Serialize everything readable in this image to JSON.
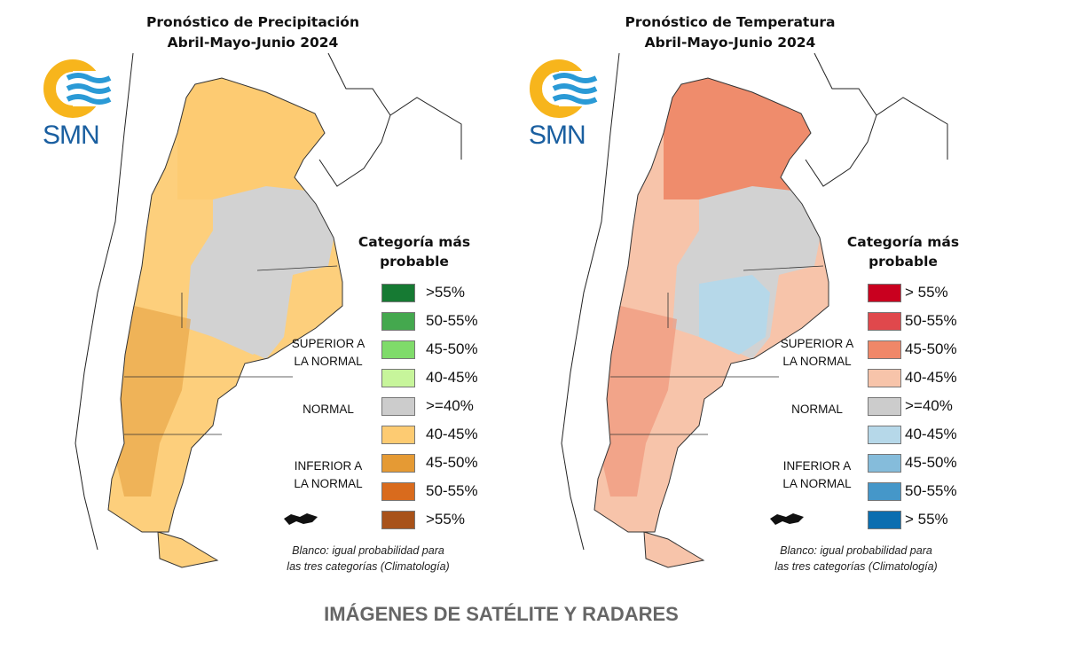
{
  "maps": [
    {
      "title_line1": "Pronóstico de Precipitación",
      "title_line2": "Abril-Mayo-Junio 2024",
      "logo_text": "SMN",
      "legend_title_line1": "Categoría más",
      "legend_title_line2": "probable",
      "legend": [
        {
          "label": ">55%",
          "color": "#167a33"
        },
        {
          "label": "50-55%",
          "color": "#44a84e"
        },
        {
          "label": "45-50%",
          "color": "#7fdb6a"
        },
        {
          "label": "40-45%",
          "color": "#c7f59b"
        },
        {
          "label": ">=40%",
          "color": "#cccccc"
        },
        {
          "label": "40-45%",
          "color": "#fdcb72"
        },
        {
          "label": "45-50%",
          "color": "#e59a34"
        },
        {
          "label": "50-55%",
          "color": "#d96b1d"
        },
        {
          "label": ">55%",
          "color": "#a8521a"
        }
      ],
      "superior_line1": "SUPERIOR A",
      "superior_line2": "LA NORMAL",
      "normal": "NORMAL",
      "inferior_line1": "INFERIOR A",
      "inferior_line2": "LA NORMAL",
      "note_line1": "Blanco: igual probabilidad para",
      "note_line2": "las tres categorías (Climatología)",
      "region_colors": {
        "base": "#fdcf7c",
        "north": "#fdcb72",
        "center": "#d2d2d2",
        "patch": "#d2d2d2",
        "south": "#e8a748"
      }
    },
    {
      "title_line1": "Pronóstico de Temperatura",
      "title_line2": "Abril-Mayo-Junio 2024",
      "logo_text": "SMN",
      "legend_title_line1": "Categoría más",
      "legend_title_line2": "probable",
      "legend": [
        {
          "label": "> 55%",
          "color": "#c9001f"
        },
        {
          "label": "50-55%",
          "color": "#e0484c"
        },
        {
          "label": "45-50%",
          "color": "#f08768"
        },
        {
          "label": "40-45%",
          "color": "#f7c4aa"
        },
        {
          "label": ">=40%",
          "color": "#cccccc"
        },
        {
          "label": "40-45%",
          "color": "#b6d8e9"
        },
        {
          "label": "45-50%",
          "color": "#85bcdb"
        },
        {
          "label": "50-55%",
          "color": "#4597c9"
        },
        {
          "label": "> 55%",
          "color": "#0b6eb0"
        }
      ],
      "superior_line1": "SUPERIOR A",
      "superior_line2": "LA NORMAL",
      "normal": "NORMAL",
      "inferior_line1": "INFERIOR A",
      "inferior_line2": "LA NORMAL",
      "note_line1": "Blanco: igual probabilidad para",
      "note_line2": "las tres categorías (Climatología)",
      "region_colors": {
        "base": "#f7c4aa",
        "north": "#ef8c6c",
        "center": "#d2d2d2",
        "patch": "#b6d8e9",
        "south": "#f0977a"
      }
    }
  ],
  "bottom_heading": "IMÁGENES DE SATÉLITE Y RADARES"
}
